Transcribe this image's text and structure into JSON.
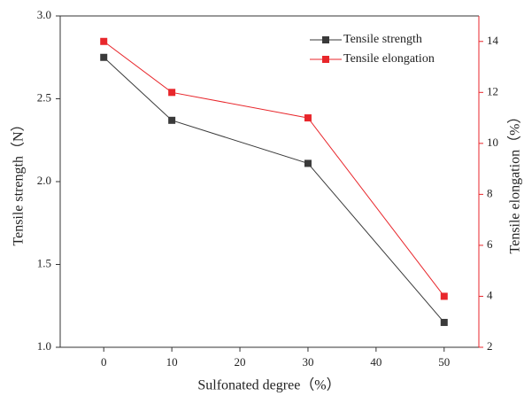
{
  "chart_data": {
    "type": "line",
    "x_label": "Sulfonated degree（%）",
    "y_label": "Tensile strength（N）",
    "y2_label": "Tensile elongation（%）",
    "x": [
      0,
      10,
      30,
      50
    ],
    "xlim": [
      -6.4,
      55.1
    ],
    "xticks": [
      0,
      10,
      20,
      30,
      40,
      50
    ],
    "ylim": [
      1.0,
      3.0
    ],
    "yticks": [
      {
        "value": 1.0,
        "label": "1.0"
      },
      1.5,
      {
        "value": 2.0,
        "label": "2.0"
      },
      2.5,
      {
        "value": 3.0,
        "label": "3.0"
      }
    ],
    "y2lim": [
      2,
      15
    ],
    "y2ticks": [
      2,
      4,
      6,
      8,
      10,
      12,
      14
    ],
    "y2color": "#e8262b",
    "legend": "upper right",
    "series": [
      {
        "name": "Tensile strength",
        "color": "#3a3a3a",
        "values": [
          2.75,
          2.37,
          2.11,
          1.15
        ]
      },
      {
        "name": "Tensile elongation",
        "color": "#e8262b",
        "values": [
          14,
          12,
          11,
          4
        ],
        "axis": "y2"
      }
    ]
  }
}
